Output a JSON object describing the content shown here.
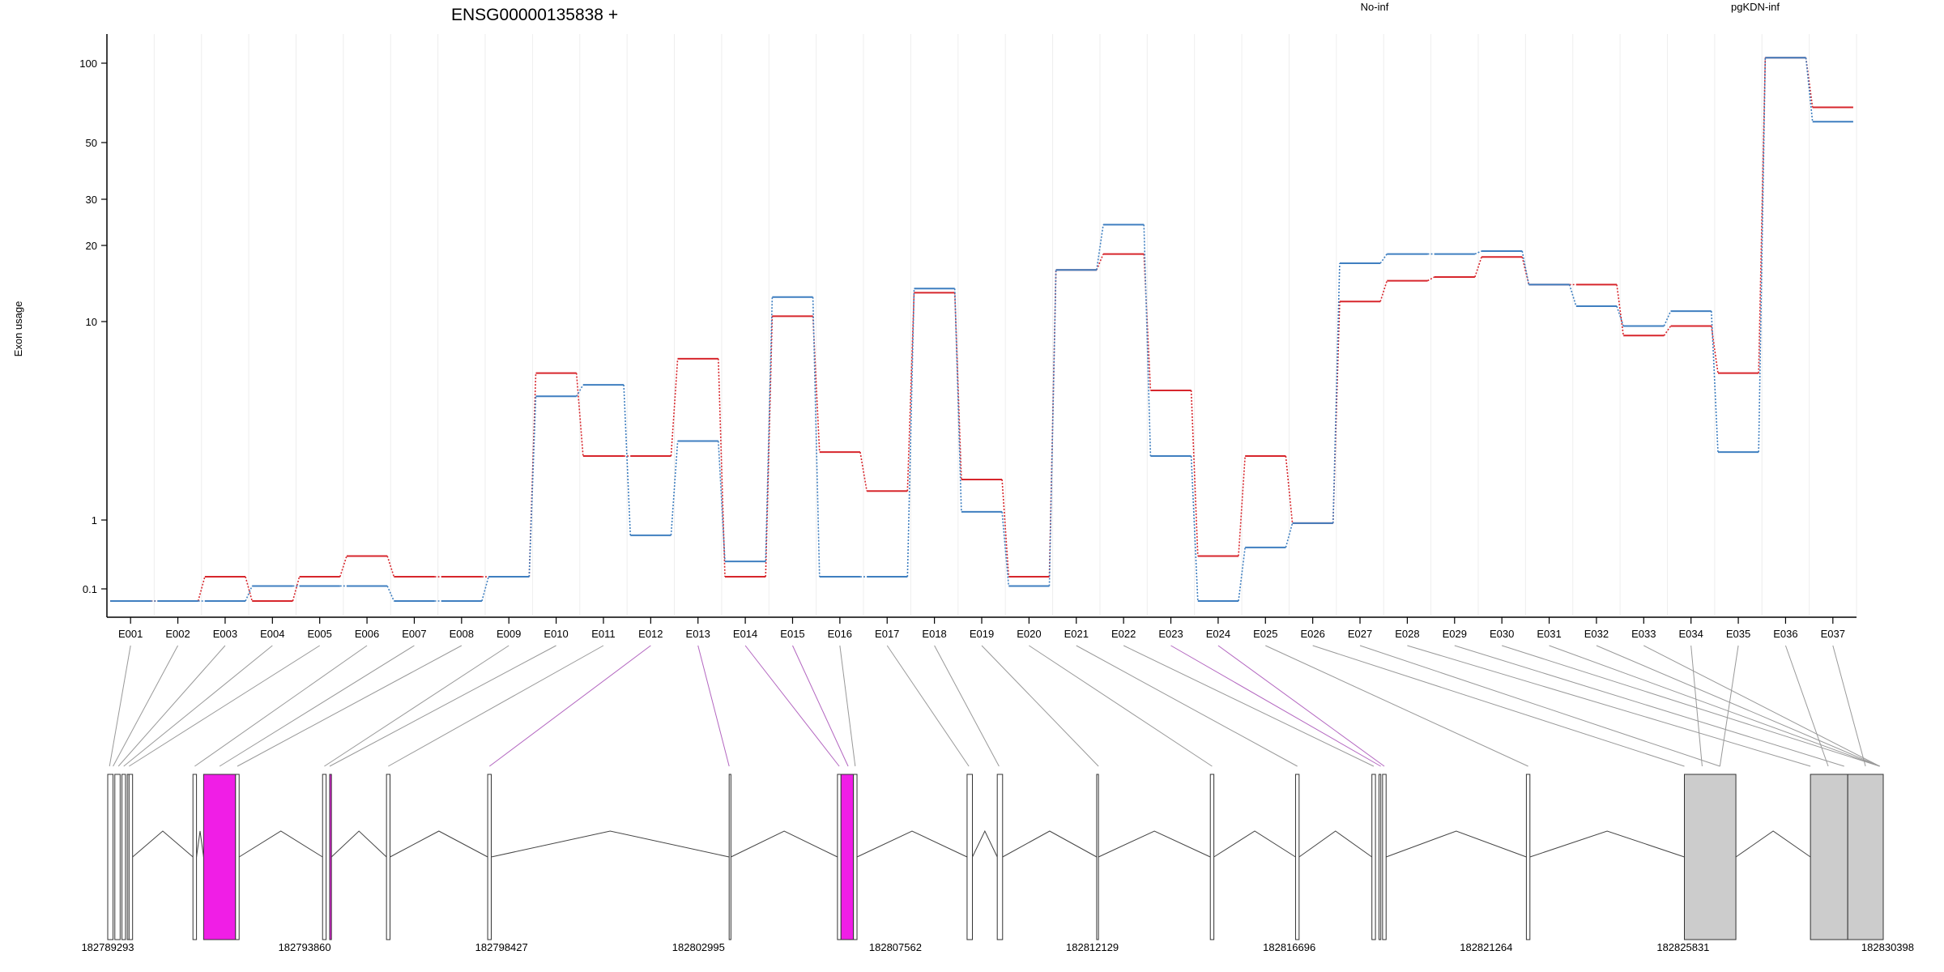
{
  "chart_data": {
    "type": "line",
    "title": "ENSG00000135838 +",
    "ylabel": "Exon usage",
    "yscale": "log",
    "yticks": [
      0.1,
      1,
      10,
      20,
      30,
      50,
      100
    ],
    "ylim": [
      0.08,
      130
    ],
    "grid": "vertical",
    "legend": [
      {
        "name": "No-inf",
        "color": "#d7262c"
      },
      {
        "name": "pgKDN-inf",
        "color": "#3f7fc0"
      }
    ],
    "categories": [
      "E001",
      "E002",
      "E003",
      "E004",
      "E005",
      "E006",
      "E007",
      "E008",
      "E009",
      "E010",
      "E011",
      "E012",
      "E013",
      "E014",
      "E015",
      "E016",
      "E017",
      "E018",
      "E019",
      "E020",
      "E021",
      "E022",
      "E023",
      "E024",
      "E025",
      "E026",
      "E027",
      "E028",
      "E029",
      "E030",
      "E031",
      "E032",
      "E033",
      "E034",
      "E035",
      "E036",
      "E037"
    ],
    "series": [
      {
        "name": "No-inf",
        "color": "#d7262c",
        "values": [
          0.08,
          0.08,
          0.15,
          0.08,
          0.15,
          0.3,
          0.15,
          0.15,
          0.15,
          5.5,
          2.1,
          2.1,
          6.5,
          0.15,
          10.5,
          2.2,
          1.4,
          13,
          1.6,
          0.15,
          16,
          18.5,
          4.5,
          0.3,
          2.1,
          0.9,
          12,
          14.5,
          15,
          18,
          14,
          14,
          8.5,
          9.5,
          5.5,
          105,
          68
        ]
      },
      {
        "name": "pgKDN-inf",
        "color": "#3f7fc0",
        "values": [
          0.08,
          0.08,
          0.08,
          0.11,
          0.11,
          0.11,
          0.08,
          0.08,
          0.15,
          4.2,
          4.8,
          0.6,
          2.5,
          0.25,
          12.5,
          0.15,
          0.15,
          13.5,
          1.1,
          0.11,
          16,
          24,
          2.1,
          0.08,
          0.4,
          0.9,
          17,
          18.5,
          18.5,
          19,
          14,
          11.5,
          9.5,
          11,
          2.2,
          105,
          60
        ]
      }
    ],
    "gene_model": {
      "coordinates": [
        "182789293",
        "182793860",
        "182798427",
        "182802995",
        "182807562",
        "182812129",
        "182816696",
        "182821264",
        "182825831",
        "182830398"
      ]
    }
  }
}
